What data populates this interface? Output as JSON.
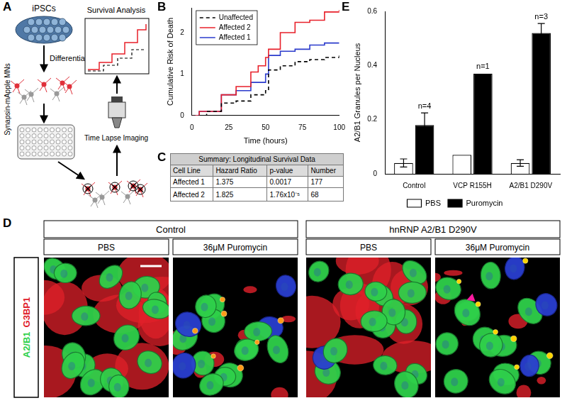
{
  "panel_labels": [
    "A",
    "B",
    "C",
    "D",
    "E"
  ],
  "diagram": {
    "steps": [
      "iPSCs",
      "Differentiation",
      "Synapsin-mApple MNs",
      "Time Lapse Imaging",
      "Survival Analysis"
    ]
  },
  "chart_data": [
    {
      "type": "step",
      "y_label": "Cumulative Risk of Death",
      "x_label": "Time (hours)",
      "xlim": [
        0,
        100
      ],
      "xticks": [
        0,
        25,
        50,
        75,
        100
      ],
      "ylim": [
        0,
        2.6
      ],
      "yticks": [
        0,
        1,
        2
      ],
      "grid": false,
      "legend": "upper left",
      "series": [
        {
          "name": "Unaffected",
          "color": "#000000",
          "line_style": "dashed",
          "x": [
            0,
            10,
            20,
            30,
            40,
            50,
            52,
            60,
            70,
            80,
            90,
            100
          ],
          "values": [
            0,
            0.1,
            0.3,
            0.35,
            0.5,
            0.6,
            1.1,
            1.2,
            1.3,
            1.35,
            1.4,
            1.45
          ]
        },
        {
          "name": "Affected 2",
          "color": "#e8202a",
          "line_style": "solid",
          "x": [
            0,
            5,
            20,
            30,
            40,
            45,
            50,
            52,
            60,
            70,
            80,
            90,
            100
          ],
          "values": [
            0,
            0.1,
            0.5,
            0.7,
            1.05,
            1.2,
            1.4,
            1.6,
            2.0,
            2.25,
            2.3,
            2.5,
            2.55
          ]
        },
        {
          "name": "Affected 1",
          "color": "#2b3bcc",
          "line_style": "solid",
          "x": [
            0,
            5,
            20,
            30,
            40,
            50,
            52,
            60,
            70,
            80,
            90,
            100
          ],
          "values": [
            0,
            0.1,
            0.5,
            0.6,
            0.8,
            1.0,
            1.45,
            1.55,
            1.6,
            1.7,
            1.75,
            1.75
          ]
        }
      ]
    },
    {
      "type": "bar",
      "y_label": "A2/B1 Granules per Nucleus",
      "categories": [
        "Control",
        "VCP R155H",
        "A2/B1 D290V"
      ],
      "ylim": [
        0,
        0.6
      ],
      "yticks": [
        0,
        0.2,
        0.4,
        0.6
      ],
      "grid": false,
      "legend": "bottom",
      "series": [
        {
          "name": "PBS",
          "color": "#ffffff",
          "values": [
            0.04,
            0.07,
            0.04
          ],
          "errors": [
            0.015,
            null,
            0.012
          ]
        },
        {
          "name": "Puromycin",
          "color": "#000000",
          "values": [
            0.18,
            0.37,
            0.52
          ],
          "errors": [
            0.045,
            null,
            0.035
          ]
        }
      ],
      "annotations": [
        {
          "series": "Puromycin",
          "category": "Control",
          "text": "n=4"
        },
        {
          "series": "Puromycin",
          "category": "VCP R155H",
          "text": "n=1"
        },
        {
          "series": "Puromycin",
          "category": "A2/B1 D290V",
          "text": "n=3"
        }
      ]
    }
  ],
  "table": {
    "title": "Summary: Longitudinal Survival Data",
    "header": [
      "Cell Line",
      "Hazard Ratio",
      "p-value",
      "Number"
    ],
    "rows": [
      [
        "Affected 1",
        "1.375",
        "0.0017",
        "177"
      ],
      [
        "Affected 2",
        "1.825",
        "1.76x10⁻⁵",
        "68"
      ]
    ]
  },
  "images": {
    "groups": [
      {
        "label": "Control",
        "conditions": [
          "PBS",
          "36μM Puromycin"
        ]
      },
      {
        "label": "hnRNP A2/B1 D290V",
        "conditions": [
          "PBS",
          "36μM Puromycin"
        ]
      }
    ],
    "stains": [
      {
        "text": "A2/B1",
        "color": "#2fd04a"
      },
      {
        "text": "G3BP1",
        "color": "#e0202a"
      }
    ]
  }
}
